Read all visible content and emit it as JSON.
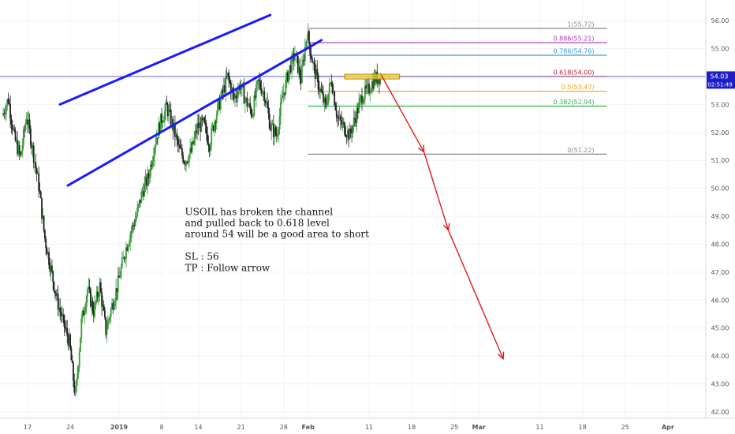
{
  "chart_data": {
    "type": "candlestick",
    "symbol": "USOIL",
    "colors": {
      "up": "#3a9a3a",
      "down": "#222222",
      "channel": "#1a1aff",
      "arrow": "#e01a1a",
      "price_line": "#5555cc",
      "price_badge": "#1e1ec8",
      "grid": "#f0f3f6",
      "zone_fill": "#f2d140",
      "zone_stroke": "#b08a00"
    },
    "y_axis": {
      "range": [
        41.8,
        56.3
      ],
      "ticks": [
        "42.00",
        "43.00",
        "44.00",
        "45.00",
        "46.00",
        "47.00",
        "48.00",
        "49.00",
        "50.00",
        "51.00",
        "52.00",
        "53.00",
        "54.00",
        "55.00",
        "56.00"
      ]
    },
    "x_axis": {
      "start_date": "2018-12-13",
      "range_days": [
        0,
        141
      ],
      "ticks": [
        {
          "label": "17",
          "day": 4
        },
        {
          "label": "24",
          "day": 11
        },
        {
          "label": "2019",
          "day": 19,
          "bold": true
        },
        {
          "label": "8",
          "day": 26
        },
        {
          "label": "14",
          "day": 32
        },
        {
          "label": "21",
          "day": 39
        },
        {
          "label": "28",
          "day": 46
        },
        {
          "label": "Feb",
          "day": 50,
          "bold": true
        },
        {
          "label": "11",
          "day": 60
        },
        {
          "label": "18",
          "day": 67
        },
        {
          "label": "25",
          "day": 74
        },
        {
          "label": "Mar",
          "day": 78,
          "bold": true
        },
        {
          "label": "11",
          "day": 88
        },
        {
          "label": "18",
          "day": 95
        },
        {
          "label": "25",
          "day": 102
        },
        {
          "label": "Apr",
          "day": 109,
          "bold": true
        }
      ]
    },
    "price_path": [
      [
        0,
        52.6
      ],
      [
        1,
        53.2
      ],
      [
        2,
        51.8
      ],
      [
        3,
        51.1
      ],
      [
        4,
        52.6
      ],
      [
        5,
        51.4
      ],
      [
        6,
        50.1
      ],
      [
        7,
        48.2
      ],
      [
        8,
        47.1
      ],
      [
        9,
        46.0
      ],
      [
        10,
        45.2
      ],
      [
        11,
        44.5
      ],
      [
        12,
        42.5
      ],
      [
        13,
        45.2
      ],
      [
        14,
        46.4
      ],
      [
        15,
        45.6
      ],
      [
        16,
        46.5
      ],
      [
        17,
        44.9
      ],
      [
        18,
        45.8
      ],
      [
        19,
        46.6
      ],
      [
        20,
        47.6
      ],
      [
        21,
        48.4
      ],
      [
        22,
        49.0
      ],
      [
        23,
        49.9
      ],
      [
        24,
        50.4
      ],
      [
        25,
        51.6
      ],
      [
        26,
        52.4
      ],
      [
        27,
        52.9
      ],
      [
        28,
        52.2
      ],
      [
        29,
        51.4
      ],
      [
        30,
        51.0
      ],
      [
        31,
        51.3
      ],
      [
        32,
        52.2
      ],
      [
        33,
        52.3
      ],
      [
        34,
        51.6
      ],
      [
        35,
        52.6
      ],
      [
        36,
        53.3
      ],
      [
        37,
        54.0
      ],
      [
        38,
        53.2
      ],
      [
        39,
        53.7
      ],
      [
        40,
        53.1
      ],
      [
        41,
        52.7
      ],
      [
        42,
        53.8
      ],
      [
        43,
        53.4
      ],
      [
        44,
        52.2
      ],
      [
        45,
        51.9
      ],
      [
        46,
        53.3
      ],
      [
        47,
        54.2
      ],
      [
        48,
        54.8
      ],
      [
        49,
        53.9
      ],
      [
        50,
        55.6
      ],
      [
        51,
        54.4
      ],
      [
        52,
        53.6
      ],
      [
        53,
        52.9
      ],
      [
        54,
        53.9
      ],
      [
        55,
        52.5
      ],
      [
        56,
        52.2
      ],
      [
        57,
        51.9
      ],
      [
        58,
        52.6
      ],
      [
        59,
        53.3
      ],
      [
        60,
        53.5
      ],
      [
        61,
        53.9
      ],
      [
        62,
        54.0
      ]
    ],
    "channel": {
      "upper": [
        [
          9.3,
          53.0
        ],
        [
          43.8,
          56.2
        ]
      ],
      "lower": [
        [
          10.6,
          50.1
        ],
        [
          52.2,
          55.3
        ]
      ]
    },
    "fibonacci": [
      {
        "label": "1(55.72)",
        "value": 55.72,
        "color": "#888888"
      },
      {
        "label": "0.886(55.21)",
        "value": 55.21,
        "color": "#a23ab5"
      },
      {
        "label": "0.786(54.76)",
        "value": 54.76,
        "color": "#3b9dd8"
      },
      {
        "label": "0.618(54.00)",
        "value": 54.0,
        "color": "#c8202a"
      },
      {
        "label": "0.5(53.47)",
        "value": 53.47,
        "color": "#f0a020"
      },
      {
        "label": "0.382(52.94)",
        "value": 52.94,
        "color": "#37b24d"
      },
      {
        "label": "0(51.22)",
        "value": 51.22,
        "color": "#888888"
      }
    ],
    "fib_x_range_days": [
      50,
      99
    ],
    "zone": {
      "x": [
        56,
        65
      ],
      "y": [
        53.92,
        54.08
      ]
    },
    "arrow_path": [
      [
        62,
        54.05
      ],
      [
        69,
        51.3
      ],
      [
        73,
        48.5
      ],
      [
        82,
        43.9
      ]
    ],
    "current_price": {
      "value": 54.0,
      "label": "54.03",
      "countdown": "02:51:49"
    },
    "annotation": {
      "lines": [
        "USOIL has broken the channel",
        "and pulled back to 0.618 level",
        "around 54 will be a good area to short",
        "",
        "SL : 56",
        "TP : Follow arrow"
      ]
    }
  }
}
